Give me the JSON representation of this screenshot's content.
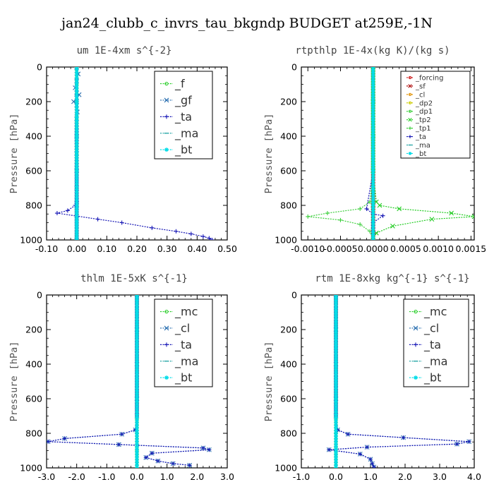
{
  "title": "jan24_clubb_c_invrs_tau_bkgndp  BUDGET at259E,-1N",
  "colors": {
    "green": "#22cc22",
    "steelblue": "#2a6fb0",
    "navy": "#1515b5",
    "cyan": "#00dde8",
    "teal": "#2fa9a9",
    "red": "#cc1010",
    "darkred": "#aa0000",
    "orange": "#e09000",
    "yellow": "#cccc00",
    "lime": "#3dcf3d"
  },
  "chart_data": [
    {
      "id": "um",
      "type": "line",
      "title": "um   1E-4xm s^{-2}",
      "ylabel": "Pressure [hPa]",
      "xlim": [
        -0.1,
        0.5
      ],
      "ylim": [
        1000,
        0
      ],
      "xticks": [
        -0.1,
        0.0,
        0.1,
        0.2,
        0.3,
        0.4,
        0.5
      ],
      "xtick_labels": [
        "-0.10",
        "0.00",
        "0.10",
        "0.20",
        "0.30",
        "0.40",
        "0.50"
      ],
      "yticks": [
        0,
        200,
        400,
        600,
        800,
        1000
      ],
      "ytick_labels": [
        "0",
        "200",
        "400",
        "600",
        "800",
        "1000"
      ],
      "legend_position": "top-right",
      "series": [
        {
          "name": "_f",
          "color": "#22cc22",
          "marker": "o",
          "x": [
            0,
            0,
            0,
            0,
            0,
            0,
            0,
            0,
            0,
            0,
            0
          ],
          "y": [
            0,
            100,
            200,
            300,
            400,
            500,
            600,
            700,
            800,
            900,
            1000
          ]
        },
        {
          "name": "_gf",
          "color": "#2a6fb0",
          "marker": "x",
          "x": [
            0.0,
            0.005,
            0.0,
            -0.005,
            0.0,
            0.008,
            0.0,
            -0.01,
            0.0,
            0.002,
            0.0,
            0.0,
            0.0,
            0.0,
            0.0,
            0.0,
            0.0
          ],
          "y": [
            0,
            40,
            80,
            120,
            150,
            160,
            180,
            200,
            220,
            260,
            300,
            400,
            500,
            600,
            700,
            800,
            1000
          ]
        },
        {
          "name": "_ta",
          "color": "#1515b5",
          "marker": "+",
          "x": [
            0.0,
            0.0,
            0.0,
            0.0,
            0.0,
            0.0,
            -0.005,
            -0.03,
            -0.065,
            0.07,
            0.15,
            0.25,
            0.33,
            0.38,
            0.42,
            0.44,
            0.45
          ],
          "y": [
            0,
            200,
            400,
            600,
            700,
            780,
            800,
            830,
            845,
            880,
            900,
            930,
            950,
            965,
            980,
            990,
            1000
          ]
        },
        {
          "name": "_ma",
          "color": "#2fa9a9",
          "marker": "-",
          "x": [
            0,
            0,
            0,
            0,
            0,
            0
          ],
          "y": [
            0,
            200,
            400,
            600,
            800,
            1000
          ]
        },
        {
          "name": "_bt",
          "color": "#00dde8",
          "marker": "*",
          "x": [
            0,
            0,
            0,
            0,
            0,
            0
          ],
          "y": [
            0,
            200,
            400,
            600,
            800,
            1000
          ]
        }
      ]
    },
    {
      "id": "rtpthlp",
      "type": "line",
      "title": "rtpthlp   1E-4x(kg K)/(kg s)",
      "ylabel": "Pressure [hPa]",
      "xlim": [
        -0.0011,
        0.00155
      ],
      "ylim": [
        1000,
        0
      ],
      "xticks": [
        -0.001,
        -0.0005,
        0.0,
        0.0005,
        0.001,
        0.0015
      ],
      "xtick_labels": [
        "-0.0010",
        "-0.0005",
        "0.0000",
        "0.0005",
        "0.0010",
        "0.0015"
      ],
      "yticks": [
        0,
        200,
        400,
        600,
        800,
        1000
      ],
      "ytick_labels": [
        "0",
        "200",
        "400",
        "600",
        "800",
        "1000"
      ],
      "legend_position": "top-right",
      "series": [
        {
          "name": "_forcing",
          "color": "#cc1010",
          "marker": "o",
          "x": [
            0,
            0,
            0,
            0,
            0,
            0
          ],
          "y": [
            0,
            200,
            400,
            600,
            800,
            1000
          ]
        },
        {
          "name": "_sf",
          "color": "#aa0000",
          "marker": "x",
          "x": [
            0,
            0,
            0,
            0,
            0,
            0
          ],
          "y": [
            0,
            200,
            400,
            600,
            800,
            1000
          ]
        },
        {
          "name": "_cl",
          "color": "#e09000",
          "marker": "o",
          "x": [
            0,
            0,
            0,
            0,
            0,
            0
          ],
          "y": [
            0,
            200,
            400,
            600,
            800,
            1000
          ]
        },
        {
          "name": "_dp2",
          "color": "#cccc00",
          "marker": "o",
          "x": [
            0,
            0,
            0,
            0,
            0,
            0
          ],
          "y": [
            0,
            200,
            400,
            600,
            800,
            1000
          ]
        },
        {
          "name": "_dp1",
          "color": "#3dcf3d",
          "marker": "o",
          "x": [
            0,
            0,
            0,
            0,
            0,
            0
          ],
          "y": [
            0,
            200,
            400,
            600,
            800,
            1000
          ]
        },
        {
          "name": "_tp2",
          "color": "#22cc22",
          "marker": "x",
          "x": [
            0.0,
            0.0,
            0.0,
            0.0,
            5e-05,
            0.0001,
            0.0004,
            0.0012,
            0.00155,
            0.0009,
            0.0003,
            5e-05,
            0.0
          ],
          "y": [
            0,
            200,
            400,
            600,
            780,
            800,
            820,
            845,
            865,
            880,
            920,
            960,
            1000
          ]
        },
        {
          "name": "_tp1",
          "color": "#3dcf3d",
          "marker": "+",
          "x": [
            0.0,
            0.0,
            0.0,
            0.0,
            -5e-05,
            -0.0002,
            -0.0007,
            -0.001,
            -0.0005,
            -0.0002,
            -5e-05,
            0.0
          ],
          "y": [
            0,
            200,
            400,
            600,
            780,
            820,
            845,
            865,
            885,
            910,
            950,
            1000
          ]
        },
        {
          "name": "_ta",
          "color": "#1515b5",
          "marker": "+",
          "x": [
            0.0,
            0.0,
            0.0,
            0.0,
            -0.0001,
            0.0,
            0.00015,
            0.0,
            0.0
          ],
          "y": [
            0,
            200,
            400,
            600,
            820,
            850,
            860,
            900,
            1000
          ]
        },
        {
          "name": "_ma",
          "color": "#2fa9a9",
          "marker": "-",
          "x": [
            0,
            0,
            0,
            0,
            0,
            0
          ],
          "y": [
            0,
            200,
            400,
            600,
            800,
            1000
          ]
        },
        {
          "name": "_bt",
          "color": "#00dde8",
          "marker": "*",
          "x": [
            0,
            0,
            0,
            0,
            0,
            0
          ],
          "y": [
            0,
            200,
            400,
            600,
            800,
            1000
          ]
        }
      ]
    },
    {
      "id": "thlm",
      "type": "line",
      "title": "thlm   1E-5xK  s^{-1}",
      "ylabel": "Pressure [hPa]",
      "xlim": [
        -3.0,
        3.0
      ],
      "ylim": [
        1000,
        0
      ],
      "xticks": [
        -3.0,
        -2.0,
        -1.0,
        0.0,
        1.0,
        2.0,
        3.0
      ],
      "xtick_labels": [
        "-3.0",
        "-2.0",
        "-1.0",
        "0.0",
        "1.0",
        "2.0",
        "3.0"
      ],
      "yticks": [
        0,
        200,
        400,
        600,
        800,
        1000
      ],
      "ytick_labels": [
        "0",
        "200",
        "400",
        "600",
        "800",
        "1000"
      ],
      "legend_position": "top-right",
      "series": [
        {
          "name": "_mc",
          "color": "#22cc22",
          "marker": "o",
          "x": [
            0,
            0,
            0,
            0,
            0,
            0,
            0,
            0,
            0,
            0,
            0
          ],
          "y": [
            0,
            100,
            200,
            300,
            400,
            500,
            600,
            700,
            800,
            900,
            1000
          ]
        },
        {
          "name": "_cl",
          "color": "#2a6fb0",
          "marker": "x",
          "x": [
            0.0,
            0.0,
            0.0,
            0.0,
            0.0,
            -0.05,
            -0.5,
            -2.4,
            -2.95,
            -0.6,
            2.2,
            2.4,
            0.5,
            0.3,
            0.7,
            1.2,
            1.75
          ],
          "y": [
            0,
            200,
            400,
            600,
            700,
            780,
            805,
            830,
            848,
            865,
            885,
            895,
            915,
            940,
            960,
            975,
            985
          ]
        },
        {
          "name": "_ta",
          "color": "#1515b5",
          "marker": "+",
          "x": [
            0.0,
            0.0,
            0.0,
            0.0,
            0.0,
            -0.05,
            -0.5,
            -2.4,
            -2.95,
            -0.6,
            2.2,
            2.4,
            0.5,
            0.3,
            0.7,
            1.2,
            1.75
          ],
          "y": [
            0,
            200,
            400,
            600,
            700,
            780,
            805,
            830,
            848,
            865,
            885,
            895,
            915,
            940,
            960,
            975,
            985
          ]
        },
        {
          "name": "_ma",
          "color": "#2fa9a9",
          "marker": "-",
          "x": [
            0,
            0,
            0,
            0,
            0,
            0
          ],
          "y": [
            0,
            200,
            400,
            600,
            800,
            1000
          ]
        },
        {
          "name": "_bt",
          "color": "#00dde8",
          "marker": "*",
          "x": [
            0,
            0,
            0,
            0,
            0,
            0
          ],
          "y": [
            0,
            200,
            400,
            600,
            800,
            1000
          ]
        }
      ]
    },
    {
      "id": "rtm",
      "type": "line",
      "title": "rtm   1E-8xkg kg^{-1} s^{-1}",
      "ylabel": "Pressure [hPa]",
      "xlim": [
        -1.0,
        4.0
      ],
      "ylim": [
        1000,
        0
      ],
      "xticks": [
        -1.0,
        0.0,
        1.0,
        2.0,
        3.0,
        4.0
      ],
      "xtick_labels": [
        "-1.0",
        "0.0",
        "1.0",
        "2.0",
        "3.0",
        "4.0"
      ],
      "yticks": [
        0,
        200,
        400,
        600,
        800,
        1000
      ],
      "ytick_labels": [
        "0",
        "200",
        "400",
        "600",
        "800",
        "1000"
      ],
      "legend_position": "top-right",
      "series": [
        {
          "name": "_mc",
          "color": "#22cc22",
          "marker": "o",
          "x": [
            0,
            0,
            0,
            0,
            0,
            0,
            0,
            0,
            0,
            0,
            0
          ],
          "y": [
            0,
            100,
            200,
            300,
            400,
            500,
            600,
            700,
            800,
            900,
            1000
          ]
        },
        {
          "name": "_cl",
          "color": "#2a6fb0",
          "marker": "x",
          "x": [
            0.0,
            0.0,
            0.0,
            0.0,
            0.0,
            0.05,
            0.35,
            1.95,
            3.85,
            3.5,
            0.9,
            -0.2,
            0.7,
            1.0,
            1.05,
            1.1
          ],
          "y": [
            0,
            200,
            400,
            600,
            700,
            780,
            805,
            825,
            848,
            862,
            880,
            895,
            920,
            950,
            975,
            995
          ]
        },
        {
          "name": "_ta",
          "color": "#1515b5",
          "marker": "+",
          "x": [
            0.0,
            0.0,
            0.0,
            0.0,
            0.0,
            0.05,
            0.35,
            1.95,
            3.85,
            3.5,
            0.9,
            -0.2,
            0.7,
            1.0,
            1.05,
            1.1
          ],
          "y": [
            0,
            200,
            400,
            600,
            700,
            780,
            805,
            825,
            848,
            862,
            880,
            895,
            920,
            950,
            975,
            995
          ]
        },
        {
          "name": "_ma",
          "color": "#2fa9a9",
          "marker": "-",
          "x": [
            0,
            0,
            0,
            0,
            0,
            0
          ],
          "y": [
            0,
            200,
            400,
            600,
            800,
            1000
          ]
        },
        {
          "name": "_bt",
          "color": "#00dde8",
          "marker": "*",
          "x": [
            0,
            0,
            0,
            0,
            0,
            0
          ],
          "y": [
            0,
            200,
            400,
            600,
            800,
            1000
          ]
        }
      ]
    }
  ]
}
